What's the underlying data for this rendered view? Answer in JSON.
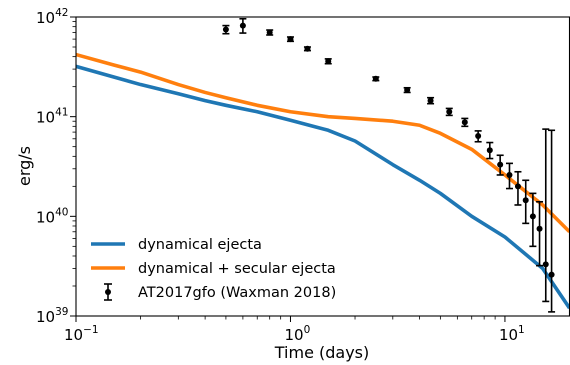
{
  "chart_data": {
    "type": "line",
    "title": "",
    "xlabel": "Time (days)",
    "ylabel": "erg/s",
    "xscale": "log",
    "yscale": "log",
    "xlim": [
      0.1,
      20
    ],
    "ylim": [
      1e+39,
      1e+42
    ],
    "grid": false,
    "legend_position": "lower-left",
    "x_ticks": [
      {
        "value": 0.1,
        "base": "10",
        "exp": "−1"
      },
      {
        "value": 1,
        "base": "10",
        "exp": "0"
      },
      {
        "value": 10,
        "base": "10",
        "exp": "1"
      }
    ],
    "y_ticks": [
      {
        "value": 1e+39,
        "base": "10",
        "exp": "39"
      },
      {
        "value": 1e+40,
        "base": "10",
        "exp": "40"
      },
      {
        "value": 1e+41,
        "base": "10",
        "exp": "41"
      },
      {
        "value": 1e+42,
        "base": "10",
        "exp": "42"
      }
    ],
    "series": [
      {
        "name": "dynamical ejecta",
        "kind": "line",
        "color": "#1f77b4",
        "x": [
          0.1,
          0.15,
          0.2,
          0.3,
          0.4,
          0.5,
          0.7,
          1.0,
          1.5,
          2.0,
          3.0,
          4.0,
          5.0,
          7.0,
          10.0,
          15.0,
          20.0
        ],
        "y": [
          3.2e+41,
          2.5e+41,
          2.1e+41,
          1.7e+41,
          1.45e+41,
          1.3e+41,
          1.12e+41,
          9.2e+40,
          7.3e+40,
          5.7e+40,
          3.3e+40,
          2.3e+40,
          1.7e+40,
          1e+40,
          6.2e+39,
          3e+39,
          1.2e+39
        ]
      },
      {
        "name": "dynamical + secular ejecta",
        "kind": "line",
        "color": "#ff7f0e",
        "x": [
          0.1,
          0.15,
          0.2,
          0.3,
          0.4,
          0.5,
          0.7,
          1.0,
          1.5,
          2.0,
          3.0,
          4.0,
          5.0,
          7.0,
          10.0,
          15.0,
          20.0
        ],
        "y": [
          4.2e+41,
          3.3e+41,
          2.8e+41,
          2.1e+41,
          1.75e+41,
          1.55e+41,
          1.3e+41,
          1.12e+41,
          1e+41,
          9.6e+40,
          9e+40,
          8.2e+40,
          6.8e+40,
          4.7e+40,
          2.6e+40,
          1.3e+40,
          7e+39
        ]
      },
      {
        "name": "AT2017gfo (Waxman 2018)",
        "kind": "errorbar",
        "color": "#000000",
        "x": [
          0.5,
          0.6,
          0.8,
          1.0,
          1.2,
          1.5,
          2.5,
          3.5,
          4.5,
          5.5,
          6.5,
          7.5,
          8.5,
          9.5,
          10.5,
          11.5,
          12.5,
          13.5,
          14.5,
          15.5,
          16.5
        ],
        "y": [
          7.5e+41,
          8.2e+41,
          7e+41,
          6e+41,
          4.8e+41,
          3.6e+41,
          2.4e+41,
          1.85e+41,
          1.45e+41,
          1.12e+41,
          8.8e+40,
          6.4e+40,
          4.6e+40,
          3.3e+40,
          2.6e+40,
          2e+40,
          1.45e+40,
          1e+40,
          7.5e+39,
          3.3e+39,
          2.6e+39
        ],
        "y_low": [
          6.8e+41,
          6.9e+41,
          6.6e+41,
          5.7e+41,
          4.6e+41,
          3.4e+41,
          2.3e+41,
          1.75e+41,
          1.35e+41,
          1.03e+41,
          8e+40,
          5.6e+40,
          3.8e+40,
          2.6e+40,
          1.9e+40,
          1.3e+40,
          8.5e+39,
          5e+39,
          3.2e+39,
          1.4e+39,
          1.1e+39
        ],
        "y_high": [
          8.2e+41,
          9.6e+41,
          7.4e+41,
          6.3e+41,
          5e+41,
          3.8e+41,
          2.5e+41,
          1.95e+41,
          1.55e+41,
          1.21e+41,
          9.6e+40,
          7.2e+40,
          5.5e+40,
          4.1e+40,
          3.4e+40,
          2.8e+40,
          2.3e+40,
          1.7e+40,
          1.4e+40,
          7.5e+40,
          7.3e+40
        ]
      }
    ]
  }
}
